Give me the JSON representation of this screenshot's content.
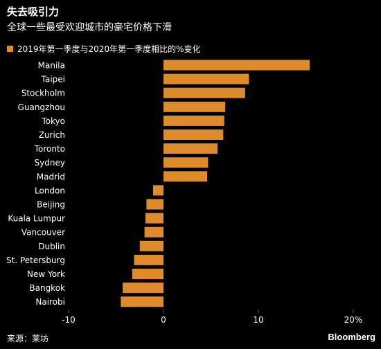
{
  "title": "失去吸引力",
  "subtitle": "全球一些最受欢迎城市的豪宅价格下滑",
  "legend": {
    "label": "2019年第一季度与2020年第一季度相比的%变化"
  },
  "source": "来源：莱坊",
  "brand": "Bloomberg",
  "colors": {
    "bar": "#e08b2a",
    "background": "#000000",
    "text": "#ffffff",
    "axis": "#666666"
  },
  "chart_data": {
    "type": "bar",
    "orientation": "horizontal",
    "categories": [
      "Manila",
      "Taipei",
      "Stockholm",
      "Guangzhou",
      "Tokyo",
      "Zurich",
      "Toronto",
      "Sydney",
      "Madrid",
      "London",
      "Beijing",
      "Kuala Lumpur",
      "Vancouver",
      "Dublin",
      "St. Petersburg",
      "New York",
      "Bangkok",
      "Nairobi"
    ],
    "values": [
      15.4,
      9.0,
      8.6,
      6.5,
      6.4,
      6.3,
      5.7,
      4.7,
      4.6,
      -1.1,
      -1.8,
      -1.9,
      -2.0,
      -2.5,
      -3.1,
      -3.3,
      -4.3,
      -4.5
    ],
    "xlim": [
      -10,
      20
    ],
    "xticks": [
      -10,
      0,
      10,
      20
    ],
    "xtick_labels": [
      "-10",
      "0",
      "10",
      "20%"
    ],
    "legend_position": "top-left",
    "grid": false
  }
}
